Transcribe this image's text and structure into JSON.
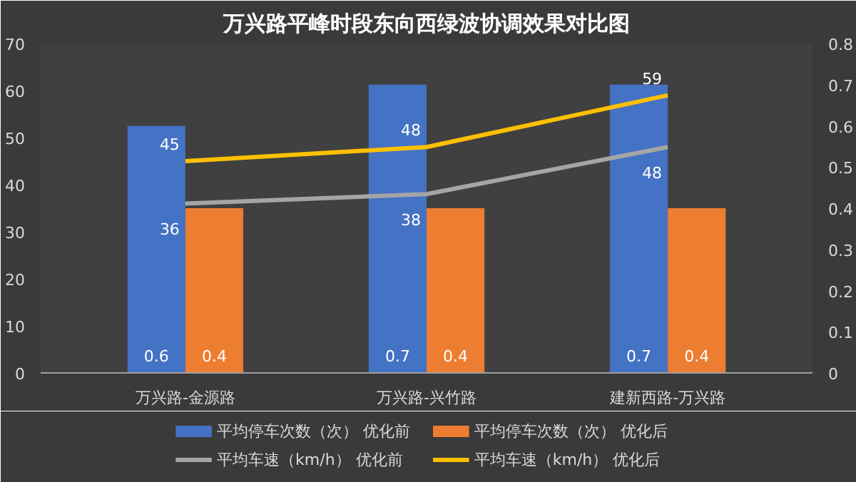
{
  "chart_data": {
    "type": "bar",
    "title": "万兴路平峰时段东向西绿波协调效果对比图",
    "categories": [
      "万兴路-金源路",
      "万兴路-兴竹路",
      "建新西路-万兴路"
    ],
    "series": [
      {
        "name": "平均停车次数（次） 优化前",
        "color": "#4472c4",
        "values": [
          0.6,
          0.7,
          0.7
        ],
        "axis": "y2"
      },
      {
        "name": "平均停车次数（次） 优化后",
        "color": "#ed7d31",
        "values": [
          0.4,
          0.4,
          0.4
        ],
        "axis": "y2"
      },
      {
        "name": "平均车速（km/h） 优化前",
        "type": "line",
        "color": "#a5a5a5",
        "values": [
          36,
          38,
          48
        ]
      },
      {
        "name": "平均车速（km/h） 优化后",
        "type": "line",
        "color": "#ffc000",
        "values": [
          45,
          48,
          59
        ]
      }
    ],
    "ylim": [
      0,
      70
    ],
    "yticks": [
      0,
      10,
      20,
      30,
      40,
      50,
      60,
      70
    ],
    "y2lim": [
      0,
      0.8
    ],
    "y2ticks": [
      0,
      0.1,
      0.2,
      0.3,
      0.4,
      0.5,
      0.6,
      0.7,
      0.8
    ],
    "data_labels": true,
    "legend": "bottom",
    "grid": false,
    "line_style": "solid",
    "marker": "none"
  }
}
